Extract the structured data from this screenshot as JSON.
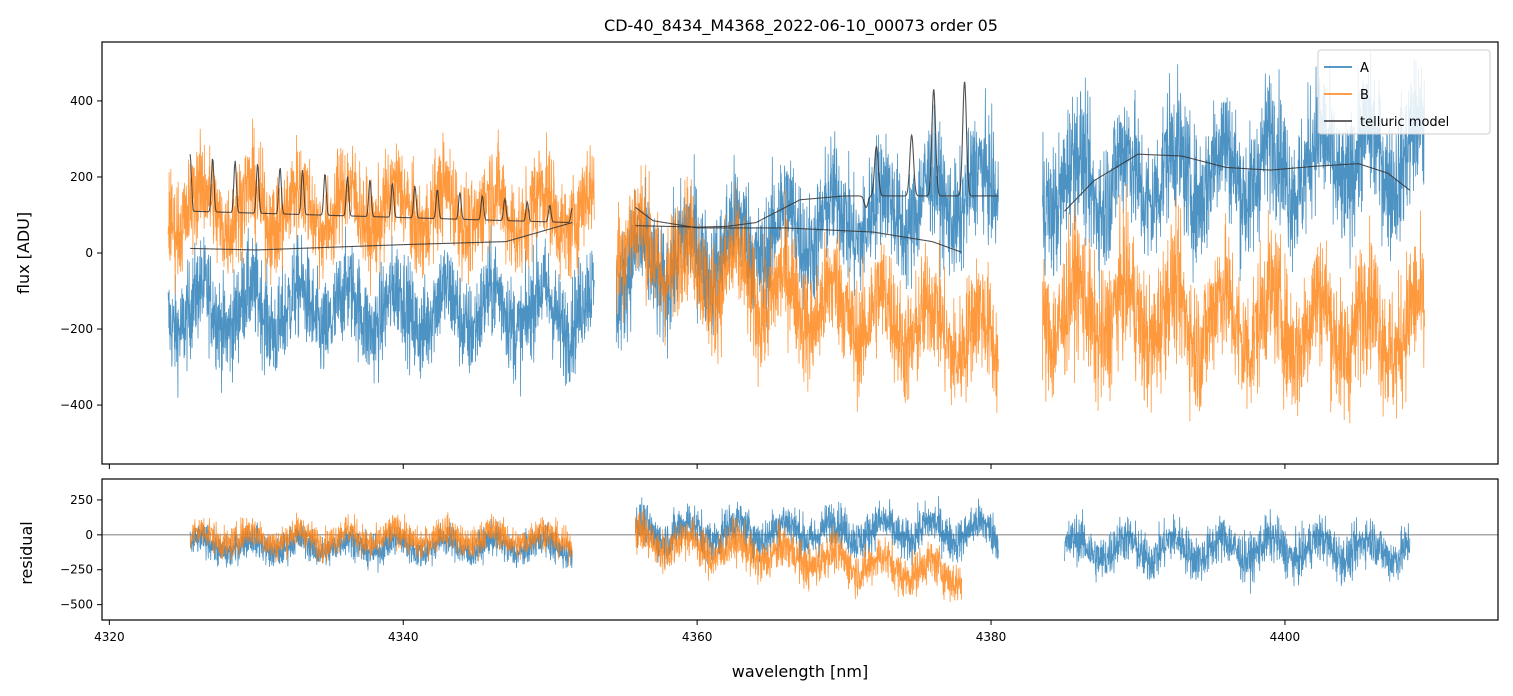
{
  "chart_data": [
    {
      "type": "line",
      "panel": "top",
      "title": "CD-40_8434_M4368_2022-06-10_00073  order 05",
      "xlabel": "",
      "ylabel": "flux [ADU]",
      "xlim": [
        4319.5,
        4414.5
      ],
      "ylim": [
        -555,
        555
      ],
      "yticks": [
        -400,
        -200,
        0,
        200,
        400
      ],
      "xticks": [
        4320,
        4340,
        4360,
        4380,
        4400
      ],
      "show_xticklabels": false,
      "legend": {
        "placement": "top-right",
        "entries": [
          "A",
          "B",
          "telluric model"
        ]
      },
      "series": [
        {
          "name": "A",
          "color": "#1f77b4",
          "style": "noisy spectrum",
          "segments": [
            {
              "x": [
                4324.0,
                4353.0
              ],
              "baseline": [
                [
                  4324,
                  -150
                ],
                [
                  4353,
                  -150
                ]
              ],
              "amplitude": 170
            },
            {
              "x": [
                4354.5,
                4380.5
              ],
              "baseline": [
                [
                  4354.5,
                  -60
                ],
                [
                  4366,
                  60
                ],
                [
                  4380.5,
                  170
                ]
              ],
              "amplitude": 200
            },
            {
              "x": [
                4383.5,
                4409.5
              ],
              "baseline": [
                [
                  4383.5,
                  180
                ],
                [
                  4409.5,
                  260
                ]
              ],
              "amplitude": 230
            }
          ]
        },
        {
          "name": "B",
          "color": "#ff7f0e",
          "style": "noisy spectrum",
          "segments": [
            {
              "x": [
                4324.0,
                4353.0
              ],
              "baseline": [
                [
                  4324,
                  120
                ],
                [
                  4353,
                  110
                ]
              ],
              "amplitude": 170
            },
            {
              "x": [
                4354.5,
                4380.5
              ],
              "baseline": [
                [
                  4354.5,
                  40
                ],
                [
                  4366,
                  -120
                ],
                [
                  4380.5,
                  -230
                ]
              ],
              "amplitude": 200
            },
            {
              "x": [
                4383.5,
                4409.5
              ],
              "baseline": [
                [
                  4383.5,
                  -150
                ],
                [
                  4409.5,
                  -200
                ]
              ],
              "amplitude": 230
            }
          ]
        },
        {
          "name": "telluric model",
          "color": "#333333",
          "style": "smooth model",
          "segments": [
            {
              "x": [
                4325.5,
                4351.5
              ],
              "kind": "comb",
              "y0": 110,
              "amp": 150,
              "n": 17
            },
            {
              "x": [
                4325.5,
                4351.5
              ],
              "points": [
                [
                  4325.5,
                  12
                ],
                [
                  4330,
                  8
                ],
                [
                  4340,
                  22
                ],
                [
                  4347,
                  30
                ],
                [
                  4351.5,
                  80
                ]
              ]
            },
            {
              "x": [
                4355.8,
                4370.0
              ],
              "points": [
                [
                  4355.8,
                  72
                ],
                [
                  4360,
                  68
                ],
                [
                  4362,
                  70
                ],
                [
                  4364,
                  80
                ],
                [
                  4367,
                  140
                ],
                [
                  4370,
                  150
                ]
              ]
            },
            {
              "x": [
                4355.8,
                4378.0
              ],
              "points": [
                [
                  4355.8,
                  120
                ],
                [
                  4357,
                  85
                ],
                [
                  4360,
                  66
                ],
                [
                  4366,
                  66
                ],
                [
                  4372,
                  55
                ],
                [
                  4376,
                  30
                ],
                [
                  4378,
                  2
                ]
              ]
            },
            {
              "x": [
                4370.0,
                4380.5
              ],
              "kind": "peaks",
              "base": 150,
              "peaks": [
                [
                  4371.5,
                  120
                ],
                [
                  4372.2,
                  280
                ],
                [
                  4374.6,
                  310
                ],
                [
                  4376.1,
                  430
                ],
                [
                  4378.2,
                  450
                ]
              ]
            },
            {
              "x": [
                4385.0,
                4408.5
              ],
              "points": [
                [
                  4385,
                  110
                ],
                [
                  4387,
                  190
                ],
                [
                  4390,
                  260
                ],
                [
                  4393,
                  255
                ],
                [
                  4396,
                  225
                ],
                [
                  4399,
                  218
                ],
                [
                  4402,
                  228
                ],
                [
                  4405,
                  235
                ],
                [
                  4407,
                  210
                ],
                [
                  4408.5,
                  165
                ]
              ]
            }
          ]
        }
      ]
    },
    {
      "type": "line",
      "panel": "bottom",
      "title": "",
      "xlabel": "wavelength [nm]",
      "ylabel": "residual",
      "xlim": [
        4319.5,
        4414.5
      ],
      "ylim": [
        -610,
        400
      ],
      "yticks": [
        -500,
        -250,
        0,
        250
      ],
      "xticks": [
        4320,
        4340,
        4360,
        4380,
        4400
      ],
      "zero_line": true,
      "series": [
        {
          "name": "A",
          "color": "#1f77b4",
          "style": "noisy residual",
          "segments": [
            {
              "x": [
                4325.5,
                4351.5
              ],
              "baseline": [
                [
                  4325.5,
                  -80
                ],
                [
                  4351.5,
                  -80
                ]
              ],
              "amplitude": 150
            },
            {
              "x": [
                4355.8,
                4380.5
              ],
              "baseline": [
                [
                  4355.8,
                  20
                ],
                [
                  4368,
                  30
                ],
                [
                  4380.5,
                  20
                ]
              ],
              "amplitude": 200
            },
            {
              "x": [
                4385.0,
                4408.5
              ],
              "baseline": [
                [
                  4385,
                  -100
                ],
                [
                  4408.5,
                  -100
                ]
              ],
              "amplitude": 220
            }
          ]
        },
        {
          "name": "B",
          "color": "#ff7f0e",
          "style": "noisy residual",
          "segments": [
            {
              "x": [
                4325.5,
                4351.5
              ],
              "baseline": [
                [
                  4325.5,
                  -20
                ],
                [
                  4351.5,
                  -20
                ]
              ],
              "amplitude": 150
            },
            {
              "x": [
                4355.8,
                4378.0
              ],
              "baseline": [
                [
                  4355.8,
                  -30
                ],
                [
                  4366,
                  -150
                ],
                [
                  4378,
                  -280
                ]
              ],
              "amplitude": 200
            }
          ]
        }
      ]
    }
  ]
}
